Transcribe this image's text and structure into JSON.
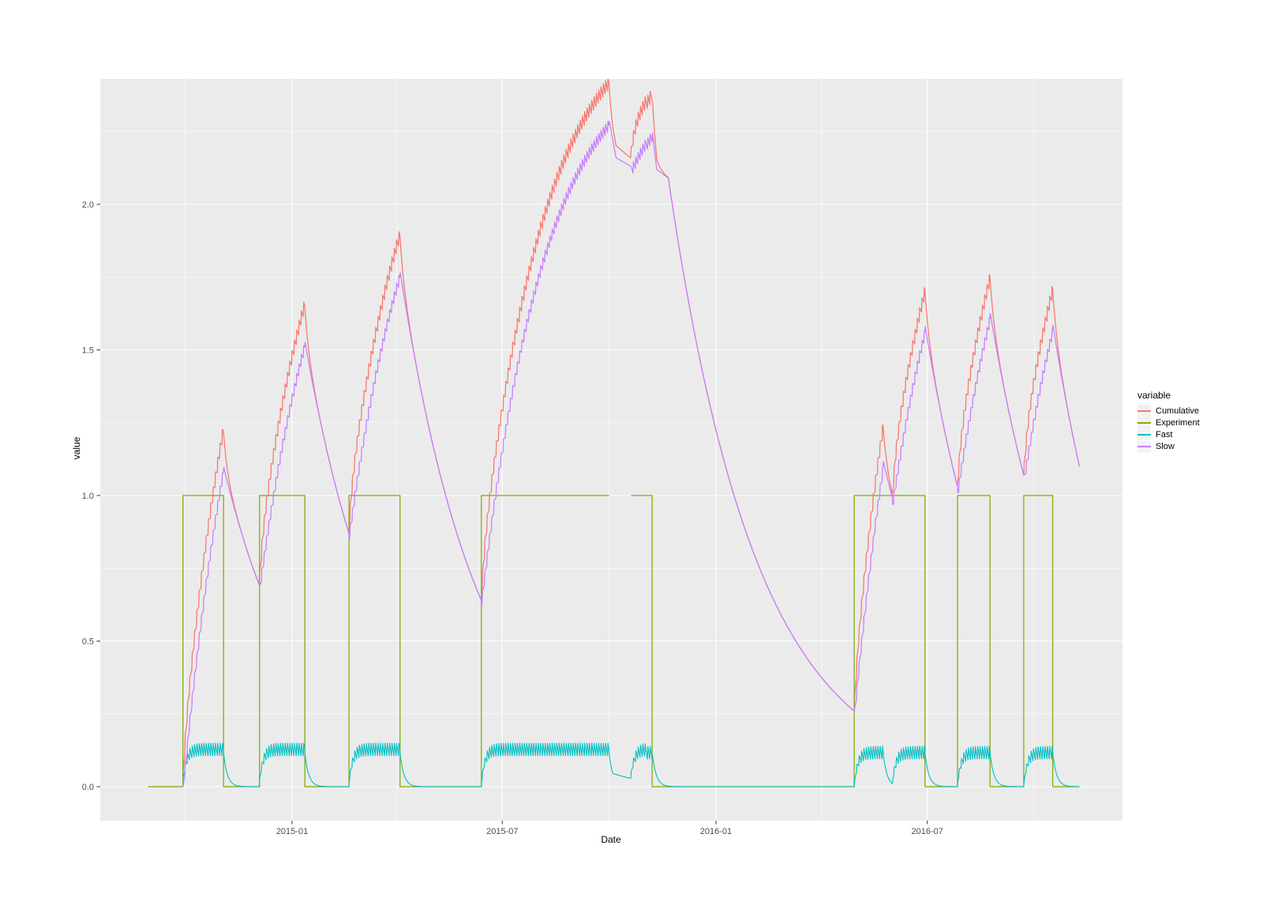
{
  "chart_data": {
    "type": "line",
    "title": "",
    "x_axis": {
      "label": "Date",
      "tick_labels": [
        "2015-01",
        "2015-07",
        "2016-01",
        "2016-07"
      ],
      "tick_dates": [
        "2015-01-01",
        "2015-07-01",
        "2016-01-01",
        "2016-07-01"
      ],
      "minor_dates": [
        "2014-10-01",
        "2015-04-01",
        "2015-10-01",
        "2016-04-01",
        "2016-10-01"
      ],
      "domain": [
        "2014-07-20",
        "2016-12-16"
      ],
      "data_range": [
        "2014-08-30",
        "2016-11-09"
      ]
    },
    "y_axis": {
      "label": "value",
      "ticks": [
        0.0,
        0.5,
        1.0,
        1.5,
        2.0
      ],
      "tick_labels": [
        "0.0",
        "0.5",
        "1.0",
        "1.5",
        "2.0"
      ],
      "minor_ticks": [
        0.25,
        0.75,
        1.25,
        1.75,
        2.25
      ],
      "domain": [
        -0.117,
        2.431
      ]
    },
    "legend": {
      "title": "variable",
      "position": "right",
      "entries": [
        {
          "label": "Cumulative",
          "color": "#F8766D"
        },
        {
          "label": "Experiment",
          "color": "#7CAE00"
        },
        {
          "label": "Fast",
          "color": "#00BFC4"
        },
        {
          "label": "Slow",
          "color": "#C77CFF"
        }
      ]
    },
    "panel_style": {
      "background": "#EBEBEB",
      "grid_color": "#FFFFFF",
      "tick_color": "#333333",
      "tick_label_color": "#4D4D4D"
    },
    "series": {
      "experiment": {
        "name": "Experiment",
        "color": "#7CAE00",
        "type": "step",
        "paths": [
          [
            [
              "2014-08-30",
              0
            ],
            [
              "2014-09-29",
              0
            ],
            [
              "2014-09-29",
              1
            ],
            [
              "2014-11-03",
              1
            ],
            [
              "2014-11-03",
              0
            ],
            [
              "2014-12-04",
              0
            ],
            [
              "2014-12-04",
              1
            ],
            [
              "2015-01-12",
              1
            ],
            [
              "2015-01-12",
              0
            ],
            [
              "2015-02-19",
              0
            ],
            [
              "2015-02-19",
              1
            ],
            [
              "2015-04-04",
              1
            ],
            [
              "2015-04-04",
              0
            ],
            [
              "2015-06-13",
              0
            ],
            [
              "2015-06-13",
              1
            ],
            [
              "2015-10-01",
              1
            ]
          ],
          [
            [
              "2015-10-20",
              1
            ],
            [
              "2015-11-07",
              1
            ],
            [
              "2015-11-07",
              0
            ],
            [
              "2016-04-29",
              0
            ],
            [
              "2016-04-29",
              1
            ],
            [
              "2016-06-29",
              1
            ],
            [
              "2016-06-29",
              0
            ],
            [
              "2016-07-27",
              0
            ],
            [
              "2016-07-27",
              1
            ],
            [
              "2016-08-24",
              1
            ],
            [
              "2016-08-24",
              0
            ],
            [
              "2016-09-22",
              0
            ],
            [
              "2016-09-22",
              1
            ],
            [
              "2016-10-17",
              1
            ],
            [
              "2016-10-17",
              0
            ],
            [
              "2016-11-09",
              0
            ]
          ]
        ]
      },
      "slow": {
        "name": "Slow",
        "color": "#C77CFF",
        "start": "2014-09-29",
        "end": "2016-11-09",
        "anchors": [
          [
            "2014-09-29",
            0.0,
            "rise"
          ],
          [
            "2014-11-03",
            1.1,
            "exp"
          ],
          [
            "2014-12-04",
            0.69,
            "rise"
          ],
          [
            "2015-01-12",
            1.53,
            "exp"
          ],
          [
            "2015-02-19",
            0.87,
            "rise"
          ],
          [
            "2015-04-04",
            1.77,
            "exp"
          ],
          [
            "2015-06-13",
            0.64,
            "rise"
          ],
          [
            "2015-10-01",
            2.29,
            "exp"
          ],
          [
            "2015-10-07",
            2.16,
            "lin"
          ],
          [
            "2015-10-20",
            2.13,
            "rise"
          ],
          [
            "2015-11-07",
            2.26,
            "exp"
          ],
          [
            "2015-11-11",
            2.12,
            "lin"
          ],
          [
            "2015-11-21",
            2.09,
            "exp"
          ],
          [
            "2016-04-29",
            0.26,
            "rise"
          ],
          [
            "2016-05-24",
            1.12,
            "exp"
          ],
          [
            "2016-06-01",
            0.99,
            "rise"
          ],
          [
            "2016-06-29",
            1.585,
            "exp"
          ],
          [
            "2016-07-27",
            1.03,
            "rise"
          ],
          [
            "2016-08-24",
            1.63,
            "exp"
          ],
          [
            "2016-09-22",
            1.07,
            "rise"
          ],
          [
            "2016-10-17",
            1.59,
            "exp"
          ],
          [
            "2016-11-09",
            1.1,
            "end"
          ]
        ],
        "rise_rate": 0.018,
        "tooth_amp": 0.045,
        "tooth_period_days": 2
      },
      "fast": {
        "name": "Fast",
        "color": "#00BFC4",
        "start": "2014-09-29",
        "end": "2016-11-09",
        "on_windows": [
          [
            "2014-09-29",
            "2014-11-03"
          ],
          [
            "2014-12-04",
            "2015-01-12"
          ],
          [
            "2015-02-19",
            "2015-04-04"
          ],
          [
            "2015-06-13",
            "2015-10-01"
          ],
          [
            "2015-10-20",
            "2015-11-07"
          ],
          [
            "2016-04-29",
            "2016-05-24"
          ],
          [
            "2016-06-01",
            "2016-06-29"
          ],
          [
            "2016-07-27",
            "2016-08-24"
          ],
          [
            "2016-09-22",
            "2016-10-17"
          ]
        ],
        "plateau_mid": 0.1225,
        "band": [
          0.095,
          0.15
        ],
        "ramp_tau_days": 3,
        "off_decay_per_day": 0.3,
        "reduced_window": {
          "from": "2015-10-01",
          "to": "2015-10-20",
          "level": 0.05,
          "level_decay_per_day": 0.03
        },
        "tooth_period_days": 2
      },
      "cumulative": {
        "name": "Cumulative",
        "color": "#F8766D",
        "formula": "slow + fast",
        "tooth_amp": 0.054,
        "peaks": [
          1.26,
          1.68,
          1.92,
          2.43,
          2.43,
          1.26,
          1.73,
          1.78,
          1.74
        ]
      }
    }
  }
}
